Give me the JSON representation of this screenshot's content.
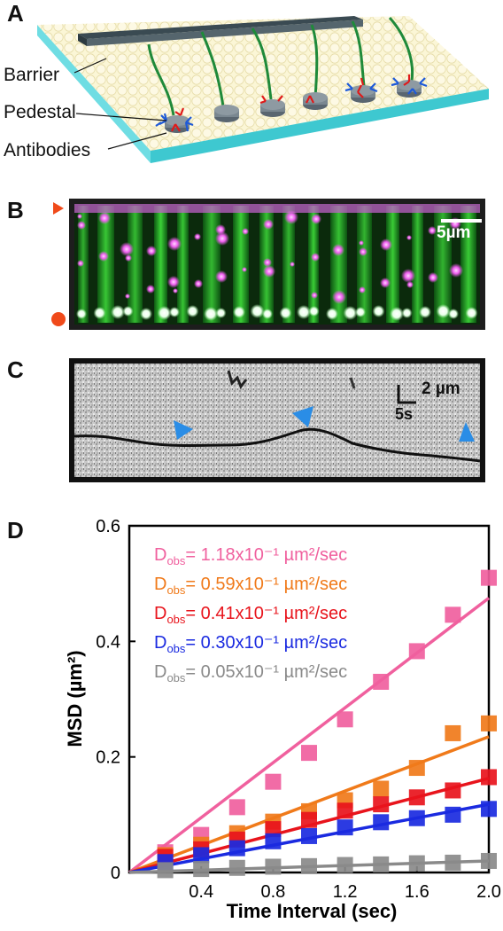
{
  "panels": {
    "A": {
      "letter": "A",
      "labels": {
        "barrier": "Barrier",
        "pedestal": "Pedestal",
        "antibodies": "Antibodies"
      }
    },
    "B": {
      "letter": "B",
      "scalebar": "5µm"
    },
    "C": {
      "letter": "C",
      "scale_y": "2 µm",
      "scale_x": "5s"
    },
    "D": {
      "letter": "D"
    }
  },
  "chart_data": {
    "type": "scatter",
    "xlabel": "Time Interval (sec)",
    "ylabel": "MSD (µm²)",
    "xlim": [
      0,
      2.0
    ],
    "ylim": [
      0,
      0.6
    ],
    "xticks": [
      "0.4",
      "0.8",
      "1.2",
      "1.6",
      "2.0"
    ],
    "yticks": [
      "0",
      "0.2",
      "0.4",
      "0.6"
    ],
    "x": [
      0.2,
      0.4,
      0.6,
      0.8,
      1.0,
      1.2,
      1.4,
      1.6,
      1.8,
      2.0
    ],
    "series": [
      {
        "label_main": "D",
        "label_sub": "obs",
        "label_value": "= 1.18x10⁻¹ µm²/sec",
        "color": "#f0609e",
        "values": [
          0.035,
          0.065,
          0.113,
          0.157,
          0.207,
          0.265,
          0.33,
          0.383,
          0.446,
          0.51
        ],
        "fit": [
          0,
          0.475
        ]
      },
      {
        "label_main": "D",
        "label_sub": "obs",
        "label_value": "= 0.59x10⁻¹ µm²/sec",
        "color": "#f07a1a",
        "values": [
          0.03,
          0.048,
          0.068,
          0.088,
          0.106,
          0.125,
          0.145,
          0.181,
          0.241,
          0.258
        ],
        "fit": [
          0,
          0.235
        ]
      },
      {
        "label_main": "D",
        "label_sub": "obs",
        "label_value": "= 0.41x10⁻¹ µm²/sec",
        "color": "#e8141c",
        "values": [
          0.027,
          0.04,
          0.057,
          0.075,
          0.091,
          0.107,
          0.118,
          0.13,
          0.142,
          0.165
        ],
        "fit": [
          0,
          0.163
        ]
      },
      {
        "label_main": "D",
        "label_sub": "obs",
        "label_value": "= 0.30x10⁻¹ µm²/sec",
        "color": "#1a2ae0",
        "values": [
          0.018,
          0.03,
          0.042,
          0.054,
          0.063,
          0.078,
          0.087,
          0.094,
          0.1,
          0.11
        ],
        "fit": [
          0,
          0.118
        ]
      },
      {
        "label_main": "D",
        "label_sub": "obs",
        "label_value": "= 0.05x10⁻¹ µm²/sec",
        "color": "#8a8a8a",
        "values": [
          0.004,
          0.006,
          0.008,
          0.01,
          0.011,
          0.013,
          0.014,
          0.016,
          0.017,
          0.02
        ],
        "fit": [
          0,
          0.02
        ]
      }
    ]
  }
}
